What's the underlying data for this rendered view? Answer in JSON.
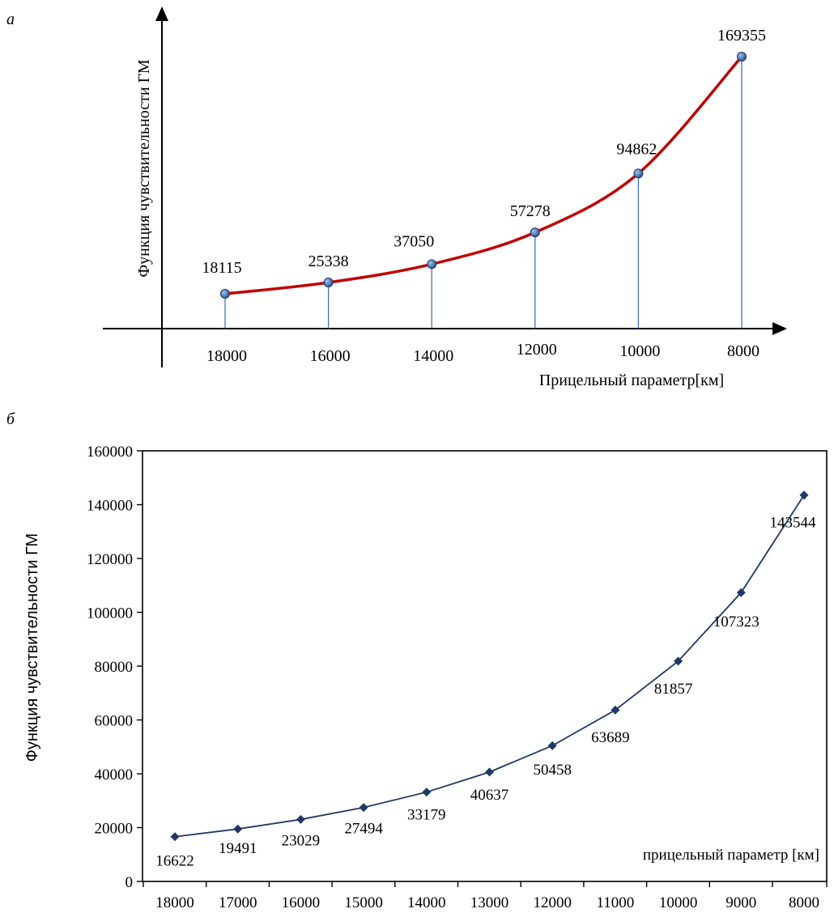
{
  "panel_a": {
    "letter": "а",
    "ylabel": "Функция чувствительности  ГМ",
    "xlabel": "Прицельный параметр[км]"
  },
  "panel_b": {
    "letter": "б",
    "ylabel": "Функция чувствительности  ГМ",
    "xlabel": "прицельный параметр [км]"
  },
  "colors": {
    "curve_a": "#c00000",
    "marker_a": "#4472c4",
    "drop_a": "#4472c4",
    "line_b": "#1f3864",
    "marker_b": "#1f3864"
  },
  "chart_data": [
    {
      "type": "line",
      "panel": "а",
      "title": "",
      "xlabel": "Прицельный параметр[км]",
      "ylabel": "Функция чувствительности  ГМ",
      "x": [
        18000,
        16000,
        14000,
        12000,
        10000,
        8000
      ],
      "x_tick_labels": [
        "18000",
        "16000",
        "14000",
        "12000",
        "10000",
        "8000"
      ],
      "series": [
        {
          "values": [
            18115,
            25338,
            37050,
            57278,
            94862,
            169355
          ]
        }
      ],
      "data_labels": [
        "18115",
        "25338",
        "37050",
        "57278",
        "94862",
        "169355"
      ],
      "x_axis_reversed": true,
      "grid": false,
      "y_ticks": false,
      "smooth": true,
      "drop_lines": true
    },
    {
      "type": "line",
      "panel": "б",
      "title": "",
      "xlabel": "прицельный параметр [км]",
      "ylabel": "Функция чувствительности  ГМ",
      "x": [
        18000,
        17000,
        16000,
        15000,
        14000,
        13000,
        12000,
        11000,
        10000,
        9000,
        8000
      ],
      "x_tick_labels": [
        "18000",
        "17000",
        "16000",
        "15000",
        "14000",
        "13000",
        "12000",
        "11000",
        "10000",
        "9000",
        "8000"
      ],
      "series": [
        {
          "values": [
            16622,
            19491,
            23029,
            27494,
            33179,
            40637,
            50458,
            63689,
            81857,
            107323,
            143544
          ]
        }
      ],
      "data_labels": [
        "16622",
        "19491",
        "23029",
        "27494",
        "33179",
        "40637",
        "50458",
        "63689",
        "81857",
        "107323",
        "143544"
      ],
      "ylim": [
        0,
        160000
      ],
      "y_ticks": [
        0,
        20000,
        40000,
        60000,
        80000,
        100000,
        120000,
        140000,
        160000
      ],
      "y_tick_labels": [
        "0",
        "20000",
        "40000",
        "60000",
        "80000",
        "100000",
        "120000",
        "140000",
        "160000"
      ],
      "xlim": [
        18000,
        8000
      ],
      "x_axis_reversed": true,
      "grid": false,
      "marker": "diamond"
    }
  ]
}
